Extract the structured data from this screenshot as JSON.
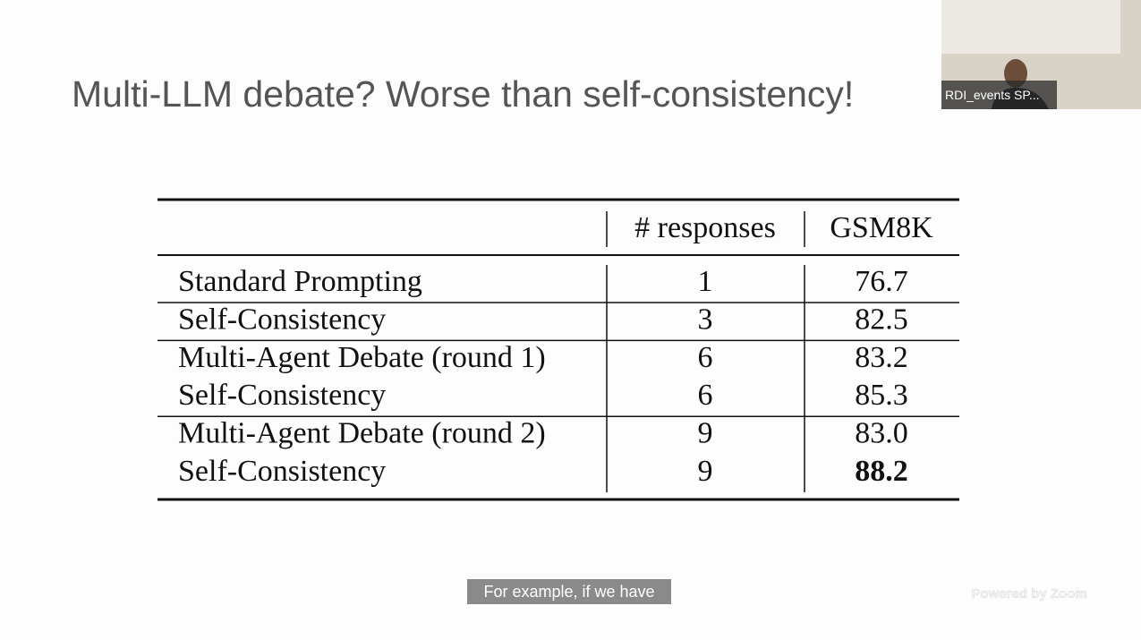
{
  "slide": {
    "title": "Multi-LLM debate? Worse than self-consistency!"
  },
  "table": {
    "header": [
      "# responses",
      "GSM8K"
    ],
    "rows": [
      [
        "Standard Prompting",
        "1",
        "76.7"
      ],
      [
        "Self-Consistency",
        "3",
        "82.5"
      ],
      [
        "Multi-Agent Debate (round 1)",
        "6",
        "83.2"
      ],
      [
        "Self-Consistency",
        "6",
        "85.3"
      ],
      [
        "Multi-Agent Debate (round 2)",
        "9",
        "83.0"
      ],
      [
        "Self-Consistency",
        "9",
        "88.2"
      ]
    ]
  },
  "video": {
    "label": "RDI_events SP..."
  },
  "caption": "For example, if we have",
  "watermark": "Powered by Zoom"
}
